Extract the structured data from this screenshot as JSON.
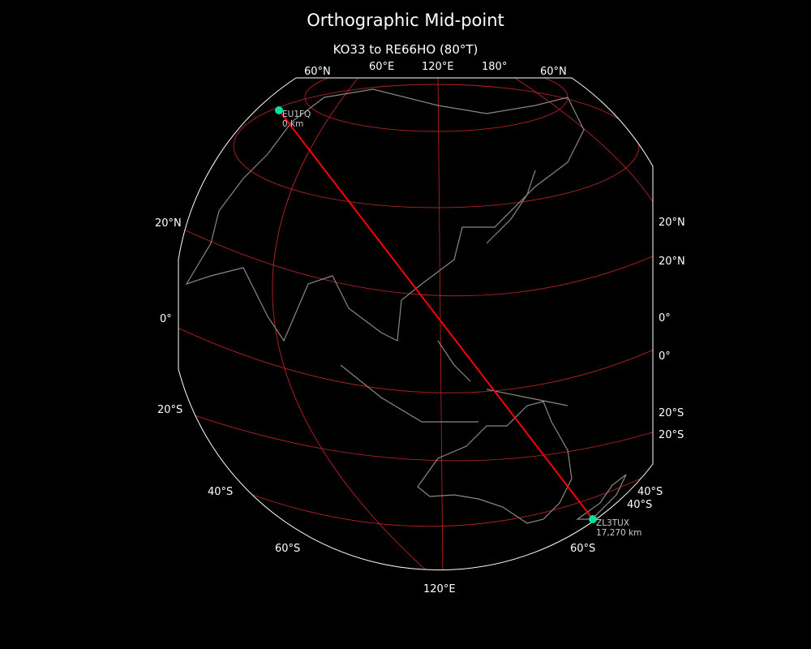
{
  "title": "Orthographic Mid-point",
  "subtitle": "KO33 to RE66HO (80°T)",
  "colors": {
    "background": "#000000",
    "globe_edge": "#ffffff",
    "graticule": "#b22222",
    "coastline": "#888888",
    "path": "#ff0000",
    "station": "#00e0a0"
  },
  "grid_labels": {
    "top": [
      "60°N",
      "60°E",
      "120°E",
      "180°",
      "60°N"
    ],
    "left": [
      "20°N",
      "0°",
      "20°S",
      "40°S",
      "60°S"
    ],
    "right": [
      "20°N",
      "20°N",
      "0°",
      "0°",
      "20°S",
      "20°S",
      "40°S",
      "40°S",
      "60°S"
    ],
    "bottom": [
      "120°E"
    ]
  },
  "stations": [
    {
      "call": "EU1FQ",
      "distance": "0 km"
    },
    {
      "call": "ZL3TUX",
      "distance": "17,270 km"
    }
  ]
}
